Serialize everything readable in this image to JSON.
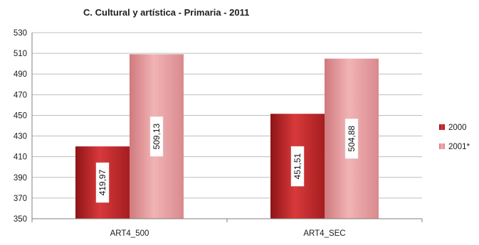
{
  "chart_data": {
    "type": "bar",
    "title": "C. Cultural y artística - Primaria - 2011",
    "xlabel": "",
    "ylabel": "",
    "categories": [
      "ART4_500",
      "ART4_SEC"
    ],
    "series": [
      {
        "name": "2000",
        "values": [
          419.97,
          451.51
        ],
        "labels": [
          "419,97",
          "451,51"
        ],
        "color": "#c0282a"
      },
      {
        "name": "2001*",
        "values": [
          509.13,
          504.88
        ],
        "labels": [
          "509,13",
          "504,88"
        ],
        "color": "#e89a9d"
      }
    ],
    "ylim": [
      350,
      530
    ],
    "yticks": [
      350,
      370,
      390,
      410,
      430,
      450,
      470,
      490,
      510,
      530
    ],
    "grid": true,
    "legend_position": "right"
  }
}
